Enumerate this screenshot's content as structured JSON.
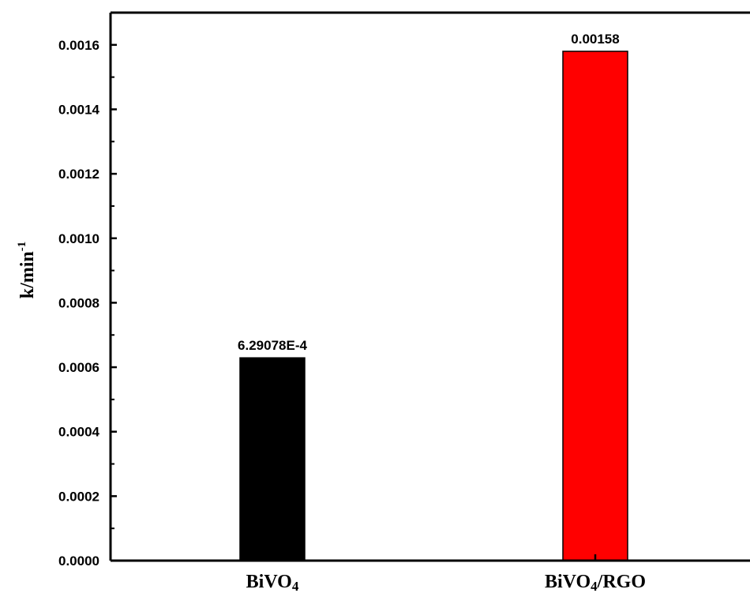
{
  "chart_data": {
    "type": "bar",
    "categories": [
      "BiVO4",
      "BiVO4/RGO"
    ],
    "category_labels": [
      {
        "main": "BiVO",
        "sub": "4",
        "rest": ""
      },
      {
        "main": "BiVO",
        "sub": "4",
        "rest": "/RGO"
      }
    ],
    "values": [
      0.000629078,
      0.00158
    ],
    "data_labels": [
      "6.29078E-4",
      "0.00158"
    ],
    "bar_colors": [
      "#000000",
      "#ff0000"
    ],
    "ylabel": {
      "main": "k/min",
      "sup": "-1"
    },
    "xlabel": "",
    "title": "",
    "ylim": [
      0,
      0.0017
    ],
    "yticks": [
      0,
      0.0002,
      0.0004,
      0.0006,
      0.0008,
      0.001,
      0.0012,
      0.0014,
      0.0016
    ],
    "ytick_labels": [
      "0.0000",
      "0.0002",
      "0.0004",
      "0.0006",
      "0.0008",
      "0.0010",
      "0.0012",
      "0.0014",
      "0.0016"
    ],
    "grid": false,
    "legend": "none"
  }
}
